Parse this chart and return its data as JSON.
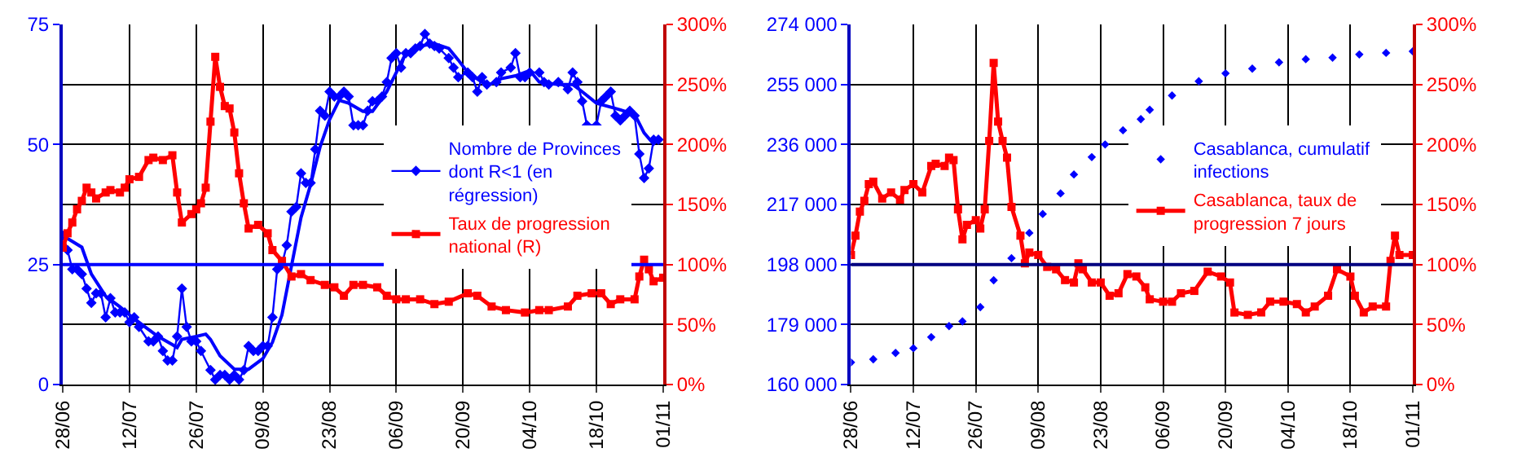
{
  "chart_data": [
    {
      "type": "line",
      "xlim": [
        "--06-28",
        "--11-01"
      ],
      "xticks": [
        {
          "value": "--06-28",
          "label": "28/06"
        },
        {
          "value": "--07-12",
          "label": "12/07"
        },
        {
          "value": "--07-26",
          "label": "26/07"
        },
        {
          "value": "--08-09",
          "label": "09/08"
        },
        {
          "value": "--08-23",
          "label": "23/08"
        },
        {
          "value": "--09-06",
          "label": "06/09"
        },
        {
          "value": "--09-20",
          "label": "20/09"
        },
        {
          "value": "--10-04",
          "label": "04/10"
        },
        {
          "value": "--10-18",
          "label": "18/10"
        },
        {
          "value": "--11-01",
          "label": "01/11"
        }
      ],
      "ylim": [
        0,
        75
      ],
      "yticks": [
        0,
        25,
        50,
        75
      ],
      "y2lim": [
        0,
        300
      ],
      "y2ticks": [
        {
          "value": 0,
          "label": "0%"
        },
        {
          "value": 50,
          "label": "50%"
        },
        {
          "value": 100,
          "label": "100%"
        },
        {
          "value": 150,
          "label": "150%"
        },
        {
          "value": 200,
          "label": "200%"
        },
        {
          "value": 250,
          "label": "250%"
        },
        {
          "value": 300,
          "label": "300%"
        }
      ],
      "grid": true,
      "legend": "right",
      "ref_lines": [
        {
          "axis": "y",
          "value": 25,
          "color": "#0000ff"
        }
      ],
      "series": [
        {
          "name": "Nombre de Provinces dont R<1 (en régression)",
          "color": "#0000ff",
          "marker": "diamond",
          "x": [
            "--06-28",
            "--06-29",
            "--06-30",
            "--07-01",
            "--07-02",
            "--07-03",
            "--07-04",
            "--07-05",
            "--07-06",
            "--07-07",
            "--07-08",
            "--07-09",
            "--07-10",
            "--07-11",
            "--07-12",
            "--07-13",
            "--07-14",
            "--07-16",
            "--07-17",
            "--07-18",
            "--07-19",
            "--07-20",
            "--07-21",
            "--07-22",
            "--07-23",
            "--07-24",
            "--07-25",
            "--07-26",
            "--07-27",
            "--07-29",
            "--07-30",
            "--07-31",
            "--08-01",
            "--08-02",
            "--08-03",
            "--08-04",
            "--08-05",
            "--08-06",
            "--08-07",
            "--08-08",
            "--08-09",
            "--08-10",
            "--08-11",
            "--08-12",
            "--08-13",
            "--08-14",
            "--08-15",
            "--08-16",
            "--08-17",
            "--08-18",
            "--08-19",
            "--08-20",
            "--08-21",
            "--08-22",
            "--08-23",
            "--08-24",
            "--08-25",
            "--08-26",
            "--08-27",
            "--08-28",
            "--08-29",
            "--08-30",
            "--08-31",
            "--09-01",
            "--09-02",
            "--09-03",
            "--09-04",
            "--09-05",
            "--09-06",
            "--09-07",
            "--09-08",
            "--09-09",
            "--09-10",
            "--09-11",
            "--09-12",
            "--09-13",
            "--09-14",
            "--09-15",
            "--09-17",
            "--09-18",
            "--09-19",
            "--09-21",
            "--09-22",
            "--09-23",
            "--09-24",
            "--09-25",
            "--09-27",
            "--09-28",
            "--09-30",
            "--10-01",
            "--10-02",
            "--10-03",
            "--10-04",
            "--10-06",
            "--10-07",
            "--10-08",
            "--10-10",
            "--10-12",
            "--10-13",
            "--10-14",
            "--10-15",
            "--10-16",
            "--10-18",
            "--10-19",
            "--10-20",
            "--10-21",
            "--10-22",
            "--10-23",
            "--10-24",
            "--10-25",
            "--10-26",
            "--10-27",
            "--10-28",
            "--10-29",
            "--10-30",
            "--10-31"
          ],
          "values": [
            31,
            28,
            24,
            24,
            23,
            20,
            17,
            19,
            19,
            14,
            18,
            15,
            15,
            15,
            13,
            14,
            12,
            9,
            9,
            10,
            7,
            5,
            5,
            10,
            20,
            12,
            9,
            9,
            7,
            3,
            1,
            2,
            2,
            1,
            2,
            1,
            3,
            8,
            7,
            7,
            8,
            8,
            14,
            24,
            25,
            29,
            36,
            37,
            44,
            42,
            42,
            49,
            57,
            56,
            61,
            60,
            60,
            61,
            60,
            54,
            54,
            54,
            57,
            59,
            59,
            60,
            63,
            68,
            69,
            66,
            69,
            69,
            70,
            70.5,
            73,
            71,
            70.5,
            70,
            68,
            66,
            64,
            65,
            64,
            61,
            64,
            62.5,
            63,
            65,
            66,
            69,
            64,
            64,
            65,
            65,
            63,
            62.5,
            63,
            61.5,
            65,
            63,
            59,
            54,
            54,
            59,
            60,
            61,
            56,
            55,
            56,
            57,
            56,
            48,
            43,
            45,
            51,
            51
          ]
        },
        {
          "color": "#0000ff",
          "marker": "none",
          "x": [
            "--06-28",
            "--07-02",
            "--07-04",
            "--07-07",
            "--07-10",
            "--07-12",
            "--07-15",
            "--07-18",
            "--07-21",
            "--07-22",
            "--07-23",
            "--07-26",
            "--07-28",
            "--07-29",
            "--07-31",
            "--08-03",
            "--08-06",
            "--08-09",
            "--08-11",
            "--08-13",
            "--08-15",
            "--08-17",
            "--08-19",
            "--08-21",
            "--08-23",
            "--08-25",
            "--08-27",
            "--08-30",
            "--09-01",
            "--09-04",
            "--09-06",
            "--09-08",
            "--09-11",
            "--09-14",
            "--09-17",
            "--09-19",
            "--09-21",
            "--09-24",
            "--09-25",
            "--09-28",
            "--10-01",
            "--10-04",
            "--10-06",
            "--10-10",
            "--10-13",
            "--10-15",
            "--10-18",
            "--10-22",
            "--10-24",
            "--10-26",
            "--10-28",
            "--10-30",
            "--10-31"
          ],
          "values": [
            31,
            28.6,
            23,
            18.4,
            16.2,
            14.5,
            12.2,
            10,
            8.3,
            7.7,
            9.4,
            10,
            10.5,
            9.4,
            6,
            3.2,
            3.2,
            5.4,
            8.8,
            14.5,
            24.7,
            34.8,
            41.6,
            49.5,
            55.2,
            59.2,
            58.6,
            56.9,
            56.9,
            61,
            65,
            69,
            70.5,
            71,
            70,
            67.6,
            65,
            63,
            62.2,
            63.7,
            64.3,
            65.4,
            63,
            62.5,
            62.5,
            61,
            58.6,
            57.5,
            56.9,
            56.3,
            52.4,
            50.1,
            51.2
          ]
        },
        {
          "name": "Taux de progression national (R)",
          "color": "#ff0000",
          "marker": "square",
          "axis": "y2",
          "x": [
            "--06-28",
            "--06-29",
            "--06-30",
            "--07-01",
            "--07-02",
            "--07-03",
            "--07-04",
            "--07-05",
            "--07-07",
            "--07-08",
            "--07-10",
            "--07-11",
            "--07-12",
            "--07-14",
            "--07-16",
            "--07-17",
            "--07-19",
            "--07-21",
            "--07-22",
            "--07-23",
            "--07-25",
            "--07-26",
            "--07-27",
            "--07-28",
            "--07-29",
            "--07-30",
            "--07-31",
            "--08-01",
            "--08-02",
            "--08-03",
            "--08-04",
            "--08-05",
            "--08-06",
            "--08-08",
            "--08-10",
            "--08-11",
            "--08-13",
            "--08-15",
            "--08-17",
            "--08-19",
            "--08-22",
            "--08-24",
            "--08-26",
            "--08-28",
            "--08-30",
            "--09-02",
            "--09-04",
            "--09-06",
            "--09-08",
            "--09-11",
            "--09-14",
            "--09-17",
            "--09-21",
            "--09-23",
            "--09-26",
            "--09-29",
            "--10-03",
            "--10-06",
            "--10-08",
            "--10-12",
            "--10-14",
            "--10-17",
            "--10-19",
            "--10-21",
            "--10-23",
            "--10-26",
            "--10-27",
            "--10-28",
            "--10-29",
            "--10-30",
            "--11-01"
          ],
          "values": [
            114,
            126,
            135,
            146,
            153,
            164,
            160,
            155,
            160,
            162,
            160,
            164,
            171,
            173,
            187,
            189,
            187,
            191,
            160,
            135,
            142,
            146,
            151,
            164,
            219,
            273,
            248,
            232,
            230,
            210,
            176,
            151,
            130,
            133,
            126,
            112,
            103,
            90,
            92,
            87,
            83,
            81,
            74,
            83,
            83,
            81,
            74,
            71,
            71,
            71,
            67,
            69,
            76,
            74,
            65,
            62,
            60,
            62,
            62,
            65,
            74,
            76,
            76,
            67,
            71,
            71,
            90,
            104,
            96,
            86,
            89
          ]
        }
      ]
    },
    {
      "type": "line",
      "xlim": [
        "--06-28",
        "--11-01"
      ],
      "xticks": [
        {
          "value": "--06-28",
          "label": "28/06"
        },
        {
          "value": "--07-12",
          "label": "12/07"
        },
        {
          "value": "--07-26",
          "label": "26/07"
        },
        {
          "value": "--08-09",
          "label": "09/08"
        },
        {
          "value": "--08-23",
          "label": "23/08"
        },
        {
          "value": "--09-06",
          "label": "06/09"
        },
        {
          "value": "--09-20",
          "label": "20/09"
        },
        {
          "value": "--10-04",
          "label": "04/10"
        },
        {
          "value": "--10-18",
          "label": "18/10"
        },
        {
          "value": "--11-01",
          "label": "01/11"
        }
      ],
      "ylim": [
        160000,
        274000
      ],
      "yticks": [
        {
          "value": 160000,
          "label": "160 000"
        },
        {
          "value": 179000,
          "label": "179 000"
        },
        {
          "value": 198000,
          "label": "198 000"
        },
        {
          "value": 217000,
          "label": "217 000"
        },
        {
          "value": 236000,
          "label": "236 000"
        },
        {
          "value": 255000,
          "label": "255 000"
        },
        {
          "value": 274000,
          "label": "274 000"
        }
      ],
      "y2lim": [
        0,
        300
      ],
      "y2ticks": [
        {
          "value": 0,
          "label": "0%"
        },
        {
          "value": 50,
          "label": "50%"
        },
        {
          "value": 100,
          "label": "100%"
        },
        {
          "value": 150,
          "label": "150%"
        },
        {
          "value": 200,
          "label": "200%"
        },
        {
          "value": 250,
          "label": "250%"
        },
        {
          "value": 300,
          "label": "300%"
        }
      ],
      "grid": true,
      "legend": "right",
      "ref_lines": [
        {
          "axis": "y",
          "value": 198000,
          "color": "#000080"
        }
      ],
      "series": [
        {
          "name": "Casablanca, cumulatif infections",
          "color": "#0000ff",
          "type": "scatter",
          "marker": "diamond",
          "x": [
            "--06-28",
            "--07-03",
            "--07-08",
            "--07-12",
            "--07-16",
            "--07-20",
            "--07-23",
            "--07-27",
            "--07-30",
            "--08-03",
            "--08-07",
            "--08-10",
            "--08-14",
            "--08-17",
            "--08-21",
            "--08-24",
            "--08-28",
            "--09-01",
            "--09-03",
            "--09-08",
            "--09-14",
            "--09-20",
            "--09-26",
            "--10-02",
            "--10-08",
            "--10-14",
            "--10-20",
            "--10-26",
            "--11-01"
          ],
          "values": [
            167000,
            168000,
            170000,
            171500,
            175000,
            178500,
            180000,
            184500,
            193000,
            200000,
            208000,
            214000,
            220500,
            226500,
            232000,
            236000,
            240500,
            244000,
            247000,
            251500,
            256000,
            258500,
            260000,
            262000,
            263000,
            263500,
            264500,
            265000,
            265500
          ]
        },
        {
          "name": "Casablanca, taux de progression 7 jours",
          "color": "#ff0000",
          "marker": "square",
          "axis": "y2",
          "x": [
            "--06-28",
            "--06-29",
            "--06-30",
            "--07-01",
            "--07-02",
            "--07-03",
            "--07-05",
            "--07-07",
            "--07-09",
            "--07-10",
            "--07-12",
            "--07-14",
            "--07-16",
            "--07-17",
            "--07-19",
            "--07-20",
            "--07-21",
            "--07-22",
            "--07-23",
            "--07-24",
            "--07-26",
            "--07-27",
            "--07-28",
            "--07-29",
            "--07-30",
            "--07-31",
            "--08-01",
            "--08-02",
            "--08-03",
            "--08-05",
            "--08-06",
            "--08-07",
            "--08-09",
            "--08-11",
            "--08-13",
            "--08-15",
            "--08-17",
            "--08-18",
            "--08-19",
            "--08-21",
            "--08-23",
            "--08-25",
            "--08-27",
            "--08-29",
            "--08-31",
            "--09-02",
            "--09-03",
            "--09-06",
            "--09-08",
            "--09-10",
            "--09-13",
            "--09-16",
            "--09-19",
            "--09-21",
            "--09-22",
            "--09-25",
            "--09-28",
            "--09-30",
            "--10-03",
            "--10-06",
            "--10-08",
            "--10-10",
            "--10-13",
            "--10-15",
            "--10-18",
            "--10-19",
            "--10-21",
            "--10-23",
            "--10-26",
            "--10-27",
            "--10-28",
            "--10-29",
            "--11-01"
          ],
          "values": [
            108,
            124,
            144,
            153,
            167,
            169,
            155,
            160,
            154,
            162,
            167,
            160,
            182,
            184,
            182,
            189,
            187,
            146,
            121,
            133,
            137,
            130,
            146,
            203,
            268,
            219,
            203,
            189,
            148,
            124,
            101,
            110,
            108,
            98,
            96,
            87,
            85,
            101,
            96,
            85,
            85,
            74,
            76,
            92,
            90,
            81,
            71,
            69,
            69,
            76,
            78,
            94,
            90,
            85,
            60,
            58,
            60,
            69,
            69,
            67,
            60,
            65,
            74,
            96,
            90,
            74,
            60,
            65,
            65,
            103,
            124,
            108,
            108
          ]
        }
      ]
    }
  ]
}
